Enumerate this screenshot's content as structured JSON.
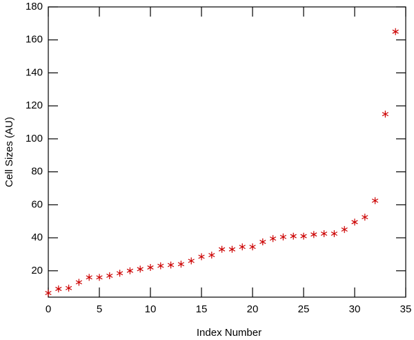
{
  "chart_data": {
    "type": "scatter",
    "x_label": "Index Number",
    "y_label": "Cell Sizes (AU)",
    "x": [
      0,
      1,
      2,
      3,
      4,
      5,
      6,
      7,
      8,
      9,
      10,
      11,
      12,
      13,
      14,
      15,
      16,
      17,
      18,
      19,
      20,
      21,
      22,
      23,
      24,
      25,
      26,
      27,
      28,
      29,
      30,
      31,
      32,
      33,
      34
    ],
    "series": [
      {
        "color": "#cc0000",
        "values": [
          6.5,
          9,
          9.5,
          13,
          16,
          16,
          17,
          18.5,
          20,
          21,
          22,
          23,
          23.5,
          24,
          26,
          28.5,
          29.5,
          33,
          33,
          34.5,
          34.5,
          37.5,
          39.5,
          40.5,
          41,
          41,
          42,
          42.5,
          42.5,
          45,
          49.5,
          52.5,
          62.5,
          115,
          165
        ]
      }
    ],
    "xlim": [
      0,
      35
    ],
    "xticks": [
      0,
      5,
      10,
      15,
      20,
      25,
      30,
      35
    ],
    "ylim": [
      4,
      180
    ],
    "yticks": [
      20,
      40,
      60,
      80,
      100,
      120,
      140,
      160,
      180
    ]
  }
}
